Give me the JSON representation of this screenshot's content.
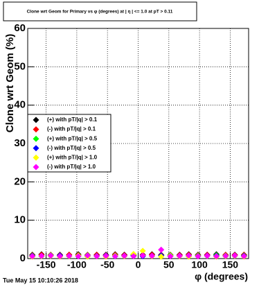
{
  "timestamp": "Tue May 15 10:10:26 2018",
  "chart_data": {
    "type": "scatter",
    "title": "Clone wrt Geom for Primary vs φ (degrees) at | η | <= 1.0 at pT > 0.11",
    "x_label": "φ (degrees)",
    "y_label": "Clone wrt Geom (%)",
    "x": [
      -172.5,
      -157.5,
      -142.5,
      -127.5,
      -112.5,
      -97.5,
      -82.5,
      -67.5,
      -52.5,
      -37.5,
      -22.5,
      -7.5,
      7.5,
      22.5,
      37.5,
      52.5,
      67.5,
      82.5,
      97.5,
      112.5,
      127.5,
      142.5,
      157.5,
      172.5
    ],
    "series": [
      {
        "name": "(+) with pT/|q| > 0.1",
        "color": "#000000",
        "values": [
          1.0,
          1.1,
          0.9,
          1.0,
          1.0,
          1.1,
          0.9,
          1.0,
          1.0,
          1.1,
          1.0,
          0.9,
          1.0,
          1.1,
          1.0,
          0.9,
          1.0,
          1.1,
          1.0,
          1.0,
          1.1,
          0.9,
          1.0,
          1.0
        ]
      },
      {
        "name": "(-) with pT/|q| > 0.1",
        "color": "#ff0000",
        "values": [
          0.9,
          1.0,
          1.0,
          0.9,
          1.0,
          0.9,
          1.0,
          1.0,
          0.9,
          1.0,
          0.9,
          1.0,
          0.9,
          1.0,
          0.9,
          1.0,
          0.9,
          1.0,
          0.9,
          1.0,
          0.9,
          1.0,
          0.9,
          1.0
        ]
      },
      {
        "name": "(+) with pT/|q| > 0.5",
        "color": "#00ff00",
        "values": [
          0.8,
          0.7,
          0.9,
          0.8,
          0.7,
          0.8,
          0.9,
          0.7,
          0.8,
          0.8,
          0.7,
          0.9,
          0.8,
          0.7,
          0.8,
          0.9,
          0.7,
          0.8,
          0.8,
          0.7,
          0.9,
          0.8,
          0.7,
          0.8
        ]
      },
      {
        "name": "(-) with pT/|q| > 0.5",
        "color": "#0000ff",
        "values": [
          0.7,
          0.6,
          0.7,
          0.8,
          0.6,
          0.7,
          0.6,
          0.7,
          0.8,
          0.6,
          0.7,
          0.7,
          0.6,
          0.7,
          0.8,
          0.6,
          0.7,
          0.7,
          0.6,
          0.8,
          0.7,
          0.6,
          0.7,
          0.7
        ]
      },
      {
        "name": "(+) with pT/|q| > 1.0",
        "color": "#ffff00",
        "values": [
          0.5,
          0.6,
          0.7,
          0.5,
          0.6,
          0.8,
          0.5,
          0.6,
          0.5,
          0.7,
          0.6,
          1.2,
          2.0,
          0.6,
          0.5,
          0.7,
          0.6,
          0.5,
          0.6,
          0.7,
          0.5,
          0.6,
          0.7,
          0.5
        ]
      },
      {
        "name": "(-) with pT/|q| > 1.0",
        "color": "#ff00ff",
        "values": [
          0.6,
          0.7,
          0.8,
          0.6,
          0.7,
          0.6,
          0.8,
          0.6,
          0.7,
          0.6,
          0.7,
          0.6,
          0.8,
          0.7,
          2.3,
          0.6,
          0.7,
          0.8,
          0.6,
          0.7,
          0.6,
          0.7,
          0.8,
          0.6
        ]
      }
    ],
    "xlim": [
      -180,
      180
    ],
    "ylim": [
      0,
      60
    ],
    "xticks": [
      -150,
      -100,
      -50,
      0,
      50,
      100,
      150
    ],
    "yticks": [
      0,
      10,
      20,
      30,
      40,
      50,
      60
    ],
    "grid": true,
    "legend": "left"
  }
}
